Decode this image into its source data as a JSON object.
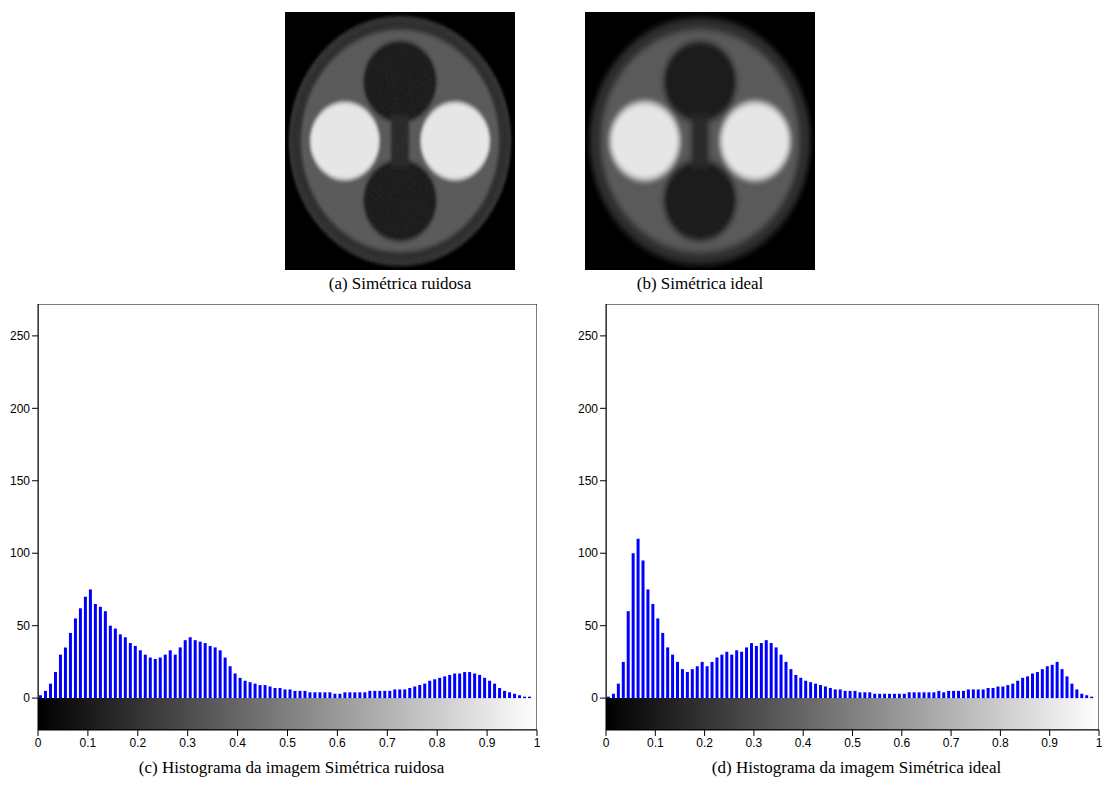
{
  "images": [
    {
      "caption": "(a) Simétrica ruidosa"
    },
    {
      "caption": "(b) Simétrica ideal"
    }
  ],
  "chart_data": [
    {
      "type": "histogram",
      "title": "(c) Histograma da imagem Simétrica ruidosa",
      "color": "#0000ff",
      "bins": [
        0,
        0.01,
        0.02,
        0.03,
        0.04,
        0.05,
        0.06,
        0.07,
        0.08,
        0.09,
        0.1,
        0.11,
        0.12,
        0.13,
        0.14,
        0.15,
        0.16,
        0.17,
        0.18,
        0.19,
        0.2,
        0.21,
        0.22,
        0.23,
        0.24,
        0.25,
        0.26,
        0.27,
        0.28,
        0.29,
        0.3,
        0.31,
        0.32,
        0.33,
        0.34,
        0.35,
        0.36,
        0.37,
        0.38,
        0.39,
        0.4,
        0.41,
        0.42,
        0.43,
        0.44,
        0.45,
        0.46,
        0.47,
        0.48,
        0.49,
        0.5,
        0.51,
        0.52,
        0.53,
        0.54,
        0.55,
        0.56,
        0.57,
        0.58,
        0.59,
        0.6,
        0.61,
        0.62,
        0.63,
        0.64,
        0.65,
        0.66,
        0.67,
        0.68,
        0.69,
        0.7,
        0.71,
        0.72,
        0.73,
        0.74,
        0.75,
        0.76,
        0.77,
        0.78,
        0.79,
        0.8,
        0.81,
        0.82,
        0.83,
        0.84,
        0.85,
        0.86,
        0.87,
        0.88,
        0.89,
        0.9,
        0.91,
        0.92,
        0.93,
        0.94,
        0.95,
        0.96,
        0.97,
        0.98,
        0.99,
        1
      ],
      "counts": [
        2,
        5,
        10,
        18,
        30,
        35,
        45,
        55,
        62,
        70,
        75,
        65,
        63,
        60,
        50,
        48,
        44,
        42,
        38,
        36,
        33,
        30,
        28,
        27,
        28,
        30,
        33,
        30,
        35,
        40,
        42,
        40,
        39,
        38,
        36,
        35,
        33,
        28,
        22,
        17,
        14,
        12,
        11,
        10,
        9,
        9,
        8,
        7,
        7,
        6,
        6,
        5,
        5,
        5,
        4,
        4,
        4,
        4,
        4,
        3,
        3,
        4,
        4,
        4,
        4,
        4,
        5,
        5,
        5,
        5,
        5,
        6,
        6,
        6,
        7,
        8,
        9,
        10,
        12,
        13,
        14,
        15,
        16,
        17,
        17,
        18,
        18,
        17,
        16,
        14,
        12,
        10,
        7,
        5,
        4,
        3,
        2,
        1,
        1,
        0
      ],
      "xlim": [
        0,
        1
      ],
      "xticks": [
        0,
        0.1,
        0.2,
        0.3,
        0.4,
        0.5,
        0.6,
        0.7,
        0.8,
        0.9,
        1
      ],
      "ylim": [
        -22,
        272
      ],
      "yticks": [
        0,
        50,
        100,
        150,
        200,
        250
      ]
    },
    {
      "type": "histogram",
      "title": "(d) Histograma da imagem Simétrica ideal",
      "color": "#0000ff",
      "bins": [
        0,
        0.01,
        0.02,
        0.03,
        0.04,
        0.05,
        0.06,
        0.07,
        0.08,
        0.09,
        0.1,
        0.11,
        0.12,
        0.13,
        0.14,
        0.15,
        0.16,
        0.17,
        0.18,
        0.19,
        0.2,
        0.21,
        0.22,
        0.23,
        0.24,
        0.25,
        0.26,
        0.27,
        0.28,
        0.29,
        0.3,
        0.31,
        0.32,
        0.33,
        0.34,
        0.35,
        0.36,
        0.37,
        0.38,
        0.39,
        0.4,
        0.41,
        0.42,
        0.43,
        0.44,
        0.45,
        0.46,
        0.47,
        0.48,
        0.49,
        0.5,
        0.51,
        0.52,
        0.53,
        0.54,
        0.55,
        0.56,
        0.57,
        0.58,
        0.59,
        0.6,
        0.61,
        0.62,
        0.63,
        0.64,
        0.65,
        0.66,
        0.67,
        0.68,
        0.69,
        0.7,
        0.71,
        0.72,
        0.73,
        0.74,
        0.75,
        0.76,
        0.77,
        0.78,
        0.79,
        0.8,
        0.81,
        0.82,
        0.83,
        0.84,
        0.85,
        0.86,
        0.87,
        0.88,
        0.89,
        0.9,
        0.91,
        0.92,
        0.93,
        0.94,
        0.95,
        0.96,
        0.97,
        0.98,
        0.99,
        1
      ],
      "counts": [
        1,
        3,
        10,
        25,
        60,
        100,
        110,
        95,
        75,
        65,
        55,
        45,
        35,
        30,
        25,
        20,
        18,
        20,
        22,
        25,
        22,
        25,
        28,
        30,
        32,
        30,
        33,
        32,
        35,
        38,
        36,
        38,
        40,
        38,
        35,
        30,
        25,
        20,
        16,
        14,
        12,
        11,
        10,
        9,
        8,
        7,
        6,
        6,
        5,
        5,
        5,
        4,
        4,
        4,
        3,
        3,
        3,
        3,
        3,
        3,
        3,
        4,
        4,
        4,
        4,
        4,
        4,
        5,
        4,
        5,
        5,
        5,
        5,
        6,
        6,
        6,
        6,
        7,
        7,
        8,
        8,
        9,
        10,
        12,
        14,
        15,
        17,
        18,
        20,
        22,
        23,
        25,
        20,
        15,
        10,
        6,
        3,
        2,
        1,
        0
      ],
      "xlim": [
        0,
        1
      ],
      "xticks": [
        0,
        0.1,
        0.2,
        0.3,
        0.4,
        0.5,
        0.6,
        0.7,
        0.8,
        0.9,
        1
      ],
      "ylim": [
        -22,
        272
      ],
      "yticks": [
        0,
        50,
        100,
        150,
        200,
        250
      ]
    }
  ]
}
